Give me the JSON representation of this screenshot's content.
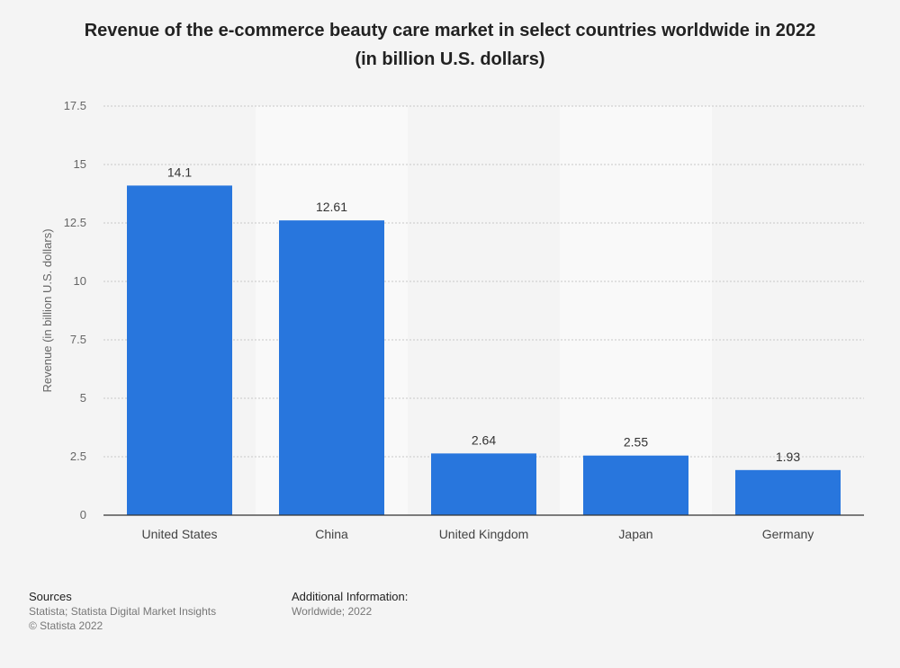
{
  "chart_data": {
    "type": "bar",
    "title_line1": "Revenue of the e-commerce beauty care market in select countries worldwide in 2022",
    "title_line2": "(in billion U.S. dollars)",
    "xlabel": "",
    "ylabel": "Revenue (in billion U.S. dollars)",
    "ylim": [
      0,
      17.5
    ],
    "yticks": [
      "0",
      "2.5",
      "5",
      "7.5",
      "10",
      "12.5",
      "15",
      "17.5"
    ],
    "categories": [
      "United States",
      "China",
      "United Kingdom",
      "Japan",
      "Germany"
    ],
    "values": [
      14.1,
      12.61,
      2.64,
      2.55,
      1.93
    ],
    "value_labels": [
      "14.1",
      "12.61",
      "2.64",
      "2.55",
      "1.93"
    ],
    "bar_color": "#2876dd",
    "grid": true
  },
  "footer": {
    "sources_heading": "Sources",
    "sources_line1": "Statista; Statista Digital Market Insights",
    "sources_line2": "© Statista 2022",
    "info_heading": "Additional Information:",
    "info_line1": "Worldwide; 2022"
  }
}
